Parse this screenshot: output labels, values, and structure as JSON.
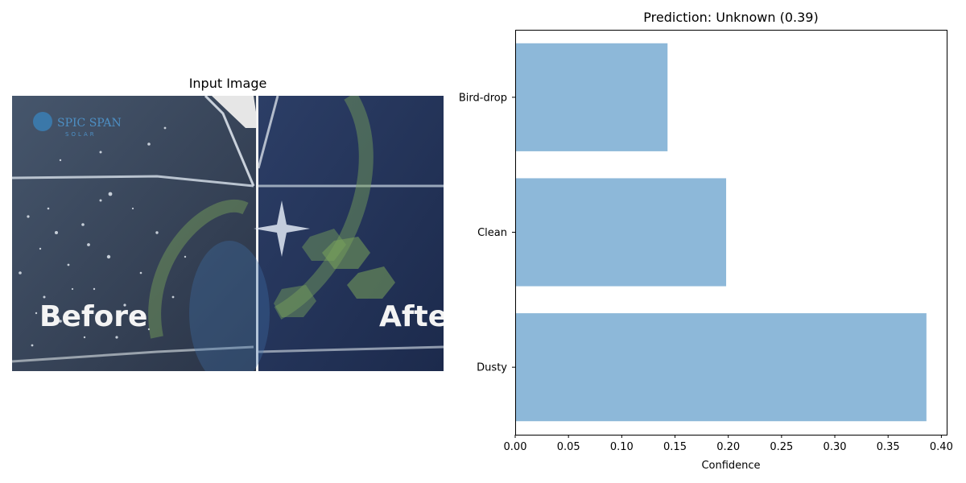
{
  "left_panel": {
    "title": "Input Image",
    "photo": {
      "text_before": "Before",
      "text_after": "Afte",
      "logo_text": "SPIC SPAN",
      "logo_sub": "SOLAR"
    }
  },
  "chart_data": {
    "type": "bar",
    "orientation": "horizontal",
    "title": "Prediction: Unknown (0.39)",
    "xlabel": "Confidence",
    "ylabel": "",
    "categories": [
      "Dusty",
      "Clean",
      "Bird-drop"
    ],
    "values": [
      0.386,
      0.198,
      0.143
    ],
    "xlim": [
      0,
      0.405
    ],
    "xticks": [
      0.0,
      0.05,
      0.1,
      0.15,
      0.2,
      0.25,
      0.3,
      0.35,
      0.4
    ],
    "xtick_labels": [
      "0.00",
      "0.05",
      "0.10",
      "0.15",
      "0.20",
      "0.25",
      "0.30",
      "0.35",
      "0.40"
    ],
    "bar_color": "#8db8d9",
    "grid": false
  }
}
